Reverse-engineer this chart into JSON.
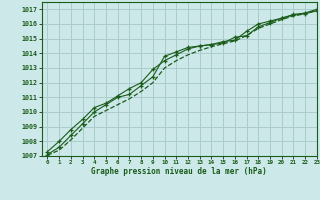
{
  "title": "Graphe pression niveau de la mer (hPa)",
  "bg_color": "#cce8e8",
  "grid_color": "#aacccc",
  "line_color": "#1a5c1a",
  "xlim": [
    -0.5,
    23
  ],
  "ylim": [
    1007,
    1017.5
  ],
  "xticks": [
    0,
    1,
    2,
    3,
    4,
    5,
    6,
    7,
    8,
    9,
    10,
    11,
    12,
    13,
    14,
    15,
    16,
    17,
    18,
    19,
    20,
    21,
    22,
    23
  ],
  "yticks": [
    1007,
    1008,
    1009,
    1010,
    1011,
    1012,
    1013,
    1014,
    1015,
    1016,
    1017
  ],
  "series1_x": [
    0,
    1,
    2,
    3,
    4,
    5,
    6,
    7,
    8,
    9,
    10,
    11,
    12,
    13,
    14,
    15,
    16,
    17,
    18,
    19,
    20,
    21,
    22,
    23
  ],
  "series1_y": [
    1007.3,
    1008.0,
    1008.8,
    1009.5,
    1010.3,
    1010.6,
    1011.1,
    1011.6,
    1012.0,
    1012.9,
    1013.5,
    1013.9,
    1014.3,
    1014.5,
    1014.6,
    1014.7,
    1015.1,
    1015.2,
    1015.8,
    1016.1,
    1016.4,
    1016.6,
    1016.7,
    1016.9
  ],
  "series2_x": [
    0,
    1,
    2,
    3,
    4,
    5,
    6,
    7,
    8,
    9,
    10,
    11,
    12,
    13,
    14,
    15,
    16,
    17,
    18,
    19,
    20,
    21,
    22,
    23
  ],
  "series2_y": [
    1007.1,
    1007.6,
    1008.4,
    1009.2,
    1010.0,
    1010.5,
    1011.0,
    1011.2,
    1011.8,
    1012.4,
    1013.8,
    1014.1,
    1014.4,
    1014.5,
    1014.6,
    1014.8,
    1014.9,
    1015.5,
    1016.0,
    1016.2,
    1016.4,
    1016.65,
    1016.75,
    1017.0
  ],
  "series3_x": [
    0,
    1,
    2,
    3,
    4,
    5,
    6,
    7,
    8,
    9,
    10,
    11,
    12,
    13,
    14,
    15,
    16,
    17,
    18,
    19,
    20,
    21,
    22,
    23
  ],
  "series3_y": [
    1007.05,
    1007.4,
    1008.1,
    1008.9,
    1009.7,
    1010.1,
    1010.5,
    1010.9,
    1011.4,
    1012.0,
    1013.0,
    1013.5,
    1013.9,
    1014.2,
    1014.45,
    1014.65,
    1014.85,
    1015.2,
    1015.7,
    1016.0,
    1016.3,
    1016.55,
    1016.7,
    1016.95
  ]
}
